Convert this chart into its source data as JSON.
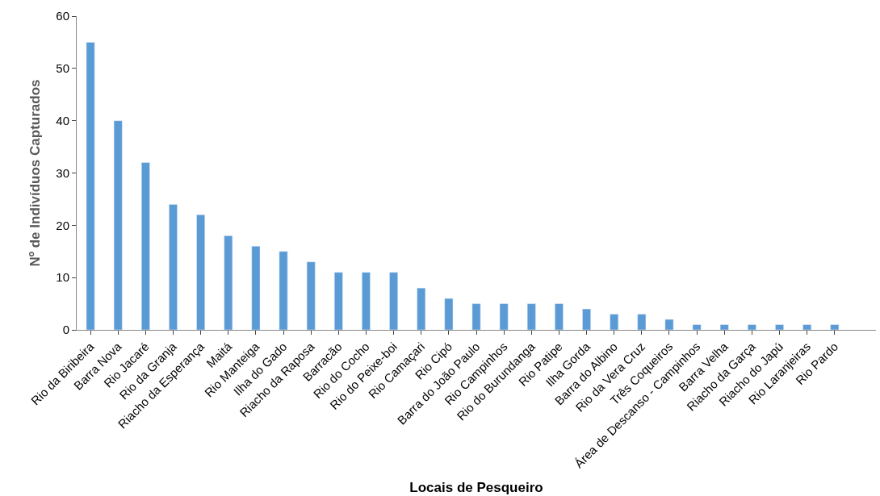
{
  "chart_data": {
    "type": "bar",
    "xlabel": "Locais de Pesqueiro",
    "ylabel": "Nº de Indivíduos Capturados",
    "categories": [
      "Rio da Biribeira",
      "Barra Nova",
      "Rio Jacaré",
      "Rio da Granja",
      "Riacho da Esperança",
      "Maitá",
      "Rio Manteiga",
      "Ilha do Gado",
      "Riacho da Raposa",
      "Barracão",
      "Rio do Cocho",
      "Rio do Peixe-boi",
      "Rio Camaçari",
      "Rio Cipó",
      "Barra do João Paulo",
      "Rio Campinhos",
      "Rio do Burundanga",
      "Rio Patipe",
      "Ilha Gorda",
      "Barra do Albino",
      "Rio da Vera Cruz",
      "Três Coqueiros",
      "Área de Descanso - Campinhos",
      "Barra Velha",
      "Riacho da Garça",
      "Riacho do Japú",
      "Rio Laranjeiras",
      "Rio Pardo",
      null
    ],
    "values": [
      55,
      40,
      32,
      24,
      22,
      18,
      16,
      15,
      13,
      11,
      11,
      11,
      8,
      6,
      5,
      5,
      5,
      5,
      4,
      3,
      3,
      2,
      1,
      1,
      1,
      1,
      1,
      1,
      null
    ],
    "color": "#5b9bd5",
    "ylim": [
      0,
      60
    ],
    "yticks": [
      0,
      10,
      20,
      30,
      40,
      50,
      60
    ],
    "legend": false
  }
}
